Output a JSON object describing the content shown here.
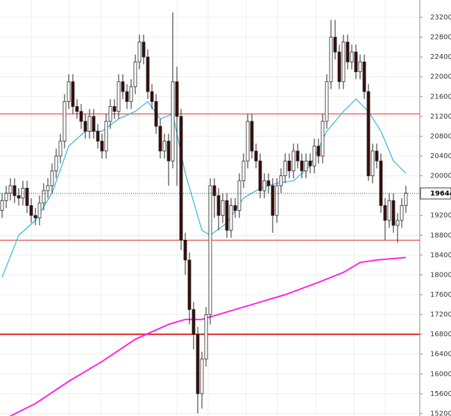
{
  "chart_data": {
    "type": "candlestick",
    "ylim": [
      15150,
      23550
    ],
    "yticks": [
      15200,
      15600,
      16000,
      16400,
      16800,
      17200,
      17600,
      18000,
      18400,
      18800,
      19200,
      19600,
      20000,
      20400,
      20800,
      21200,
      21600,
      22000,
      22400,
      22800,
      23200
    ],
    "grid": true,
    "up_color": "#ffffff",
    "down_color": "#3b0c0c",
    "open": [
      19300,
      19500,
      19650,
      19800,
      19600,
      19550,
      19750,
      19400,
      19200,
      19150,
      19450,
      19700,
      19800,
      20100,
      20400,
      20700,
      21500,
      21900,
      21400,
      21300,
      21100,
      20900,
      21200,
      20900,
      20700,
      20500,
      21100,
      21400,
      21300,
      21900,
      21700,
      21500,
      21800,
      22300,
      22700,
      22400,
      21700,
      21500,
      21000,
      20500,
      20700,
      20300,
      21900,
      21200,
      18700,
      18300,
      17300,
      16800,
      15600,
      16300,
      17200,
      19800,
      19600,
      19200,
      19500,
      18900,
      19400,
      19300,
      19900,
      20300,
      21100,
      20500,
      20300,
      19700,
      19900,
      19800,
      19200,
      19800,
      20000,
      20300,
      20100,
      20500,
      20300,
      20100,
      20300,
      20200,
      20600,
      20400,
      21100,
      21900,
      22800,
      22500,
      21900,
      22700,
      22300,
      22500,
      22100,
      22300,
      21700,
      20000,
      20500,
      20300,
      19400,
      19100,
      19500,
      19000,
      19100,
      19400
    ],
    "high": [
      19650,
      19800,
      19950,
      19950,
      19750,
      19900,
      19900,
      19550,
      19350,
      19600,
      19850,
      19950,
      20250,
      20550,
      20850,
      21650,
      22050,
      22050,
      21550,
      21450,
      21250,
      21350,
      21350,
      21050,
      20850,
      21250,
      21550,
      21550,
      22050,
      22050,
      21850,
      21950,
      22450,
      22850,
      22850,
      22550,
      21850,
      21650,
      21150,
      20850,
      20850,
      23300,
      22200,
      21350,
      18850,
      18450,
      17450,
      16950,
      16450,
      17350,
      19950,
      19950,
      19750,
      19650,
      19650,
      19550,
      19550,
      20050,
      20450,
      21250,
      21250,
      20650,
      20450,
      20050,
      20050,
      19950,
      19950,
      20150,
      20450,
      20450,
      20650,
      20650,
      20450,
      20450,
      20450,
      20750,
      20750,
      21250,
      22050,
      23150,
      23150,
      22650,
      22850,
      22850,
      22650,
      22650,
      22450,
      22450,
      21850,
      20650,
      20650,
      20450,
      19550,
      19650,
      19650,
      19250,
      19550,
      19800
    ],
    "low": [
      19150,
      19350,
      19500,
      19450,
      19400,
      19400,
      19250,
      19050,
      19000,
      19000,
      19300,
      19550,
      19650,
      19950,
      20250,
      20550,
      21350,
      21250,
      21150,
      20950,
      20750,
      20750,
      20750,
      20550,
      20350,
      20350,
      20950,
      21150,
      21150,
      21550,
      21350,
      21350,
      21650,
      22150,
      22250,
      21550,
      21350,
      20850,
      20350,
      20350,
      19800,
      20150,
      19800,
      18500,
      18000,
      17000,
      16500,
      15200,
      15300,
      16150,
      17000,
      19150,
      18900,
      19050,
      18750,
      18750,
      19150,
      19150,
      19750,
      20150,
      20350,
      20150,
      19550,
      19550,
      19650,
      18850,
      19050,
      19650,
      19850,
      19950,
      19950,
      20150,
      19950,
      19950,
      20050,
      20050,
      20250,
      20250,
      20950,
      21750,
      22350,
      21750,
      21750,
      22150,
      22150,
      21950,
      21950,
      21550,
      19900,
      19850,
      20150,
      19250,
      18700,
      18950,
      18850,
      18650,
      18950,
      19250
    ],
    "close": [
      19500,
      19650,
      19800,
      19600,
      19550,
      19750,
      19400,
      19200,
      19150,
      19450,
      19700,
      19800,
      20100,
      20400,
      20700,
      21500,
      21900,
      21400,
      21300,
      21100,
      20900,
      21200,
      20900,
      20700,
      20500,
      21100,
      21400,
      21300,
      21900,
      21700,
      21500,
      21800,
      22300,
      22700,
      22400,
      21700,
      21500,
      21000,
      20500,
      20700,
      20300,
      21900,
      21200,
      18700,
      18300,
      17300,
      16800,
      15600,
      16300,
      17200,
      19800,
      19600,
      19200,
      19500,
      18900,
      19400,
      19300,
      19900,
      20300,
      21100,
      20500,
      20300,
      19700,
      19900,
      19800,
      19200,
      19800,
      20000,
      20300,
      20100,
      20500,
      20300,
      20100,
      20300,
      20200,
      20600,
      20400,
      21100,
      21900,
      22800,
      22500,
      21900,
      22700,
      22300,
      22500,
      22100,
      22300,
      21700,
      20000,
      20500,
      20300,
      19400,
      19100,
      19500,
      19000,
      19100,
      19400,
      19650
    ],
    "averages": [
      {
        "color": "#22b8d8",
        "x": [
          0,
          4,
          8,
          12,
          16,
          20,
          24,
          28,
          32,
          35,
          38,
          41,
          44,
          48,
          50,
          54,
          58,
          62,
          66,
          70,
          74,
          78,
          82,
          85,
          88,
          91,
          94,
          97
        ],
        "values": [
          17950,
          18800,
          19100,
          19650,
          20600,
          20900,
          20900,
          21150,
          21300,
          21500,
          21150,
          21250,
          20050,
          18900,
          18800,
          19050,
          19550,
          19750,
          19850,
          19900,
          20200,
          20900,
          21300,
          21550,
          21300,
          20900,
          20300,
          20050
        ]
      },
      {
        "color": "#ff1ee6",
        "x": [
          2,
          8,
          16,
          24,
          32,
          36,
          40,
          44,
          48,
          52,
          60,
          68,
          76,
          82,
          86,
          90,
          97
        ],
        "values": [
          15150,
          15400,
          15850,
          16250,
          16700,
          16850,
          17000,
          17100,
          17100,
          17200,
          17400,
          17600,
          17850,
          18050,
          18250,
          18300,
          18350
        ]
      }
    ],
    "levels": [
      21250,
      18700,
      16800
    ],
    "level_color": "#e02020",
    "last_price": 19644
  }
}
